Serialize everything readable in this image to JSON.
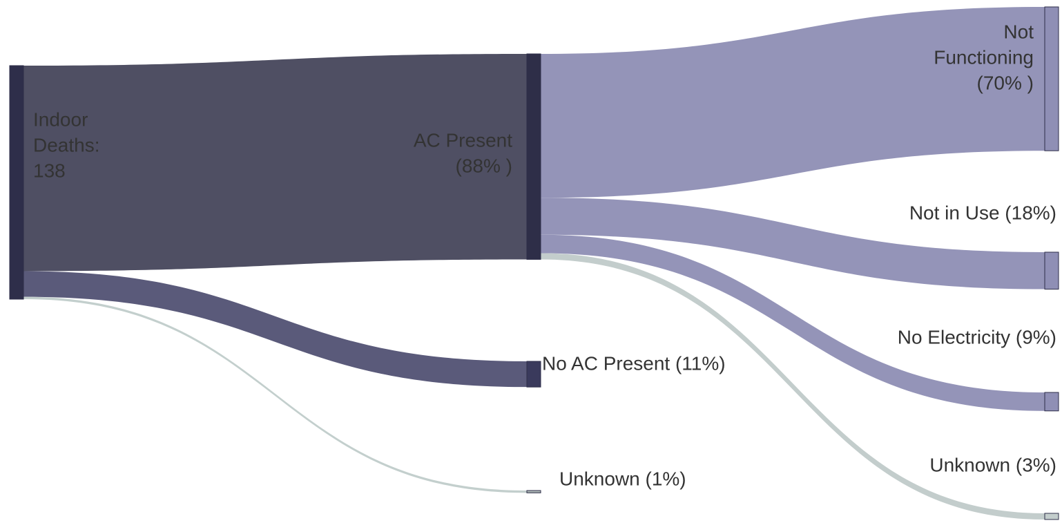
{
  "chart_data": {
    "type": "sankey",
    "nodes": [
      {
        "label_lines": [
          "Indoor",
          "Deaths:",
          "138"
        ],
        "color": "#2e2e4a"
      },
      {
        "label_lines": [
          "AC Present",
          "(88% )"
        ],
        "color": "#2e2e48"
      },
      {
        "label_lines": [
          "No AC Present (11%)"
        ],
        "color": "#3a3a5c"
      },
      {
        "label_lines": [
          "Unknown (1%)"
        ],
        "color": "#a9b4b2"
      },
      {
        "label_lines": [
          "Not",
          "Functioning",
          "(70% )"
        ],
        "color": "#8f8fb5"
      },
      {
        "label_lines": [
          "Not in Use (18%)"
        ],
        "color": "#8f8fb5"
      },
      {
        "label_lines": [
          "No Electricity (9%)"
        ],
        "color": "#8f8fb5"
      },
      {
        "label_lines": [
          "Unknown (3%)"
        ],
        "color": "#c3cdcc"
      }
    ],
    "links": [
      {
        "source": 0,
        "target": 1,
        "value": 88,
        "color": "#4f4f63"
      },
      {
        "source": 0,
        "target": 2,
        "value": 11,
        "color": "#5a5a7a"
      },
      {
        "source": 0,
        "target": 3,
        "value": 1,
        "color": "#c3cfcd"
      },
      {
        "source": 1,
        "target": 4,
        "value": 70,
        "color": "#9494b8"
      },
      {
        "source": 1,
        "target": 5,
        "value": 18,
        "color": "#9494b8"
      },
      {
        "source": 1,
        "target": 6,
        "value": 9,
        "color": "#9494b8"
      },
      {
        "source": 1,
        "target": 7,
        "value": 3,
        "color": "#c3cdcc"
      }
    ]
  }
}
